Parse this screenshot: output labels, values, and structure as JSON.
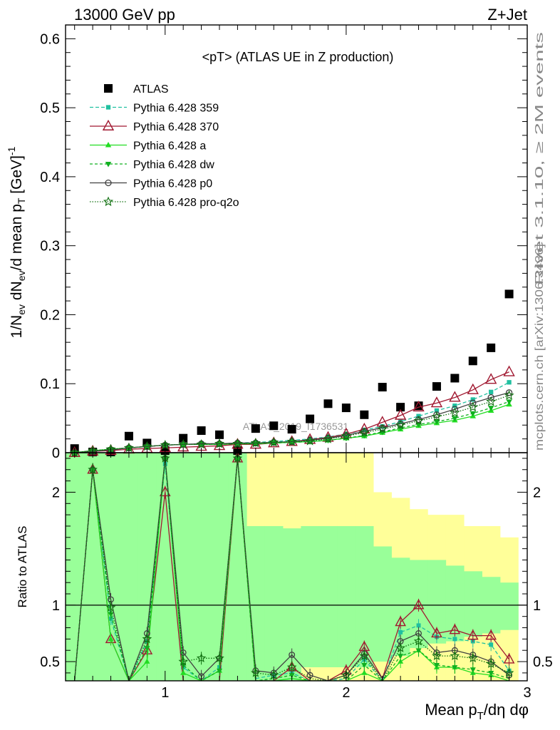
{
  "header": {
    "left": "13000 GeV pp",
    "right": "Z+Jet"
  },
  "side_labels": {
    "rivet": "Rivet 3.1.10, ≥ 2M events",
    "mcplots": "mcplots.cern.ch [arXiv:1306.3436]"
  },
  "chart_data": {
    "type": "scatter",
    "title": "<pT> (ATLAS UE in Z production)",
    "watermark": "ATLAS_2019_I1736531",
    "xlabel": "Mean p_T/dη dφ",
    "ylabel": "1/N_ev dN_ev/d mean p_T [GeV]^-1",
    "ratio_ylabel": "Ratio to ATLAS",
    "xlim": [
      0.45,
      3.0
    ],
    "ylim": [
      0,
      0.62
    ],
    "ratio_ylim": [
      0.33,
      2.35
    ],
    "x_ticks": [
      "1",
      "2",
      "3"
    ],
    "y_ticks": [
      "0",
      "0.1",
      "0.2",
      "0.3",
      "0.4",
      "0.5",
      "0.6"
    ],
    "ratio_ticks": [
      "0.5",
      "1",
      "2"
    ],
    "legend_position": "top-left",
    "x": [
      0.5,
      0.6,
      0.7,
      0.8,
      0.9,
      1.0,
      1.1,
      1.2,
      1.3,
      1.4,
      1.5,
      1.6,
      1.7,
      1.8,
      1.9,
      2.0,
      2.1,
      2.2,
      2.3,
      2.4,
      2.5,
      2.6,
      2.7,
      2.8,
      2.9
    ],
    "series": [
      {
        "name": "ATLAS",
        "color": "#000000",
        "marker": "square",
        "values": [
          0.006,
          0.001,
          0.001,
          0.024,
          0.014,
          0.003,
          0.021,
          0.032,
          0.026,
          0.003,
          0.035,
          0.039,
          0.034,
          0.049,
          0.071,
          0.065,
          0.055,
          0.095,
          0.066,
          0.068,
          0.096,
          0.108,
          0.133,
          0.152,
          0.23
        ]
      },
      {
        "name": "Pythia 6.428 359",
        "color": "#20c0a0",
        "marker": "small-square",
        "dash": "5,3",
        "values": [
          0.0,
          0.002,
          0.004,
          0.007,
          0.009,
          0.011,
          0.012,
          0.013,
          0.013,
          0.014,
          0.015,
          0.016,
          0.018,
          0.02,
          0.023,
          0.027,
          0.033,
          0.038,
          0.045,
          0.053,
          0.061,
          0.068,
          0.077,
          0.088,
          0.102
        ]
      },
      {
        "name": "Pythia 6.428 370",
        "color": "#a01830",
        "marker": "open-triangle",
        "dash": "",
        "values": [
          0.0,
          0.002,
          0.003,
          0.005,
          0.006,
          0.007,
          0.008,
          0.009,
          0.01,
          0.012,
          0.012,
          0.014,
          0.016,
          0.019,
          0.022,
          0.027,
          0.034,
          0.044,
          0.054,
          0.066,
          0.072,
          0.08,
          0.091,
          0.106,
          0.117
        ]
      },
      {
        "name": "Pythia 6.428 a",
        "color": "#22dd22",
        "marker": "filled-triangle",
        "dash": "",
        "values": [
          0.0,
          0.003,
          0.005,
          0.007,
          0.009,
          0.011,
          0.012,
          0.012,
          0.012,
          0.013,
          0.013,
          0.014,
          0.015,
          0.016,
          0.018,
          0.021,
          0.024,
          0.029,
          0.034,
          0.039,
          0.043,
          0.047,
          0.053,
          0.061,
          0.07
        ]
      },
      {
        "name": "Pythia 6.428 dw",
        "color": "#10b020",
        "marker": "filled-triangle-down",
        "dash": "4,3",
        "values": [
          0.0,
          0.003,
          0.005,
          0.007,
          0.009,
          0.011,
          0.012,
          0.012,
          0.012,
          0.013,
          0.013,
          0.014,
          0.015,
          0.016,
          0.018,
          0.021,
          0.025,
          0.03,
          0.036,
          0.041,
          0.045,
          0.05,
          0.057,
          0.065,
          0.074
        ]
      },
      {
        "name": "Pythia 6.428 p0",
        "color": "#404040",
        "marker": "open-circle",
        "dash": "",
        "values": [
          0.0,
          0.002,
          0.004,
          0.007,
          0.009,
          0.011,
          0.012,
          0.013,
          0.013,
          0.014,
          0.014,
          0.015,
          0.016,
          0.018,
          0.021,
          0.025,
          0.031,
          0.036,
          0.042,
          0.048,
          0.055,
          0.063,
          0.072,
          0.08,
          0.087
        ]
      },
      {
        "name": "Pythia 6.428 pro-q2o",
        "color": "#107010",
        "marker": "open-star",
        "dash": "1.5,2",
        "values": [
          0.0,
          0.003,
          0.005,
          0.007,
          0.009,
          0.011,
          0.012,
          0.012,
          0.013,
          0.013,
          0.014,
          0.015,
          0.016,
          0.017,
          0.02,
          0.024,
          0.029,
          0.034,
          0.04,
          0.046,
          0.052,
          0.058,
          0.066,
          0.074,
          0.083
        ]
      }
    ],
    "ratio_series": [
      {
        "name": "Pythia 6.428 359",
        "values": [
          0.2,
          2.2,
          0.88,
          0.25,
          0.68,
          2.25,
          0.45,
          0.3,
          0.45,
          2.3,
          0.35,
          0.38,
          0.4,
          0.3,
          0.25,
          0.35,
          0.52,
          0.32,
          0.76,
          0.82,
          0.72,
          0.7,
          0.68,
          0.65,
          0.42
        ]
      },
      {
        "name": "Pythia 6.428 370",
        "values": [
          0.2,
          2.2,
          0.7,
          0.2,
          0.6,
          2.0,
          0.3,
          0.25,
          0.3,
          2.3,
          0.25,
          0.3,
          0.45,
          0.3,
          0.25,
          0.42,
          0.63,
          0.35,
          0.85,
          1.0,
          0.75,
          0.78,
          0.73,
          0.73,
          0.52
        ]
      },
      {
        "name": "Pythia 6.428 a",
        "values": [
          0.2,
          2.2,
          0.7,
          0.25,
          0.5,
          2.3,
          0.4,
          0.3,
          0.42,
          2.3,
          0.3,
          0.3,
          0.35,
          0.3,
          0.2,
          0.3,
          0.4,
          0.28,
          0.5,
          0.6,
          0.45,
          0.45,
          0.4,
          0.38,
          0.3
        ]
      },
      {
        "name": "Pythia 6.428 dw",
        "values": [
          0.2,
          2.2,
          0.92,
          0.25,
          0.62,
          2.3,
          0.47,
          0.3,
          0.42,
          2.3,
          0.32,
          0.35,
          0.38,
          0.3,
          0.25,
          0.33,
          0.47,
          0.3,
          0.55,
          0.6,
          0.47,
          0.45,
          0.43,
          0.4,
          0.35
        ]
      },
      {
        "name": "Pythia 6.428 p0",
        "values": [
          0.2,
          2.2,
          1.05,
          0.3,
          0.75,
          2.3,
          0.58,
          0.37,
          0.53,
          2.3,
          0.42,
          0.4,
          0.56,
          0.38,
          0.3,
          0.38,
          0.57,
          0.35,
          0.68,
          0.75,
          0.58,
          0.6,
          0.56,
          0.5,
          0.38
        ]
      },
      {
        "name": "Pythia 6.428 pro-q2o",
        "values": [
          0.2,
          2.2,
          0.98,
          0.28,
          0.7,
          2.3,
          0.5,
          0.53,
          0.53,
          2.3,
          0.4,
          0.38,
          0.45,
          0.35,
          0.28,
          0.38,
          0.55,
          0.32,
          0.62,
          0.68,
          0.55,
          0.55,
          0.53,
          0.48,
          0.4
        ]
      }
    ],
    "uncertainty_bands": {
      "inner_color": "#99ff99",
      "outer_color": "#ffff99",
      "inner_lo": [
        0.33,
        0.33,
        0.33,
        0.33,
        0.33,
        0.33,
        0.33,
        0.33,
        0.33,
        0.33,
        0.33,
        0.33,
        0.33,
        0.45,
        0.45,
        0.45,
        0.45,
        0.5,
        0.55,
        0.62,
        0.66,
        0.68,
        0.72,
        0.75,
        0.78
      ],
      "inner_hi": [
        2.35,
        2.35,
        2.35,
        2.35,
        2.35,
        2.35,
        2.35,
        2.35,
        2.35,
        2.35,
        1.7,
        1.7,
        1.68,
        1.7,
        1.7,
        1.7,
        1.7,
        1.52,
        1.42,
        1.4,
        1.4,
        1.35,
        1.3,
        1.25,
        1.2
      ],
      "outer_lo": [
        0.33,
        0.33,
        0.33,
        0.33,
        0.33,
        0.33,
        0.33,
        0.33,
        0.33,
        0.33,
        0.33,
        0.33,
        0.33,
        0.33,
        0.33,
        0.33,
        0.33,
        0.33,
        0.33,
        0.33,
        0.33,
        0.33,
        0.33,
        0.33,
        0.33
      ],
      "outer_hi": [
        2.35,
        2.35,
        2.35,
        2.35,
        2.35,
        2.35,
        2.35,
        2.35,
        2.35,
        2.35,
        2.35,
        2.35,
        2.35,
        2.35,
        2.35,
        2.35,
        2.35,
        2.0,
        1.95,
        1.85,
        1.8,
        1.8,
        1.7,
        1.7,
        1.6
      ]
    }
  }
}
